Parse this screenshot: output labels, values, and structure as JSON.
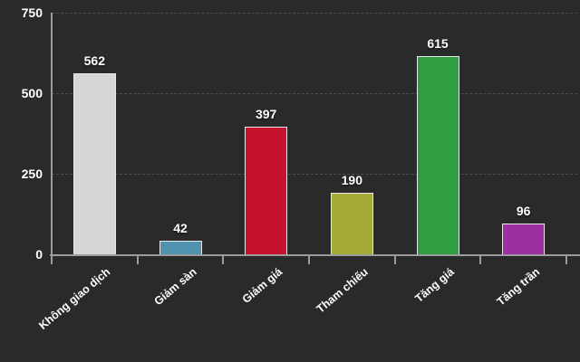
{
  "chart_data": {
    "type": "bar",
    "title": "",
    "categories": [
      "Không giao dịch",
      "Giảm sàn",
      "Giảm giá",
      "Tham chiếu",
      "Tăng giá",
      "Tăng trần"
    ],
    "values": [
      562,
      42,
      397,
      190,
      615,
      96
    ],
    "bar_colors": [
      "#d6d6d6",
      "#4f93af",
      "#c5122d",
      "#a6aa39",
      "#2e9e40",
      "#9d2fa1"
    ],
    "value_labels": [
      "562",
      "42",
      "397",
      "190",
      "615",
      "96"
    ],
    "xlabel": "",
    "ylabel": "",
    "ylim": [
      0,
      750
    ],
    "yticks": [
      "0",
      "250",
      "500",
      "750"
    ],
    "grid": "horizontal-dashed",
    "legend": "none"
  },
  "theme": {
    "background": "#2a2a2a",
    "axis_color": "#9c9c9c",
    "grid_color": "#4d4d4d",
    "text_color": "#ffffff"
  }
}
